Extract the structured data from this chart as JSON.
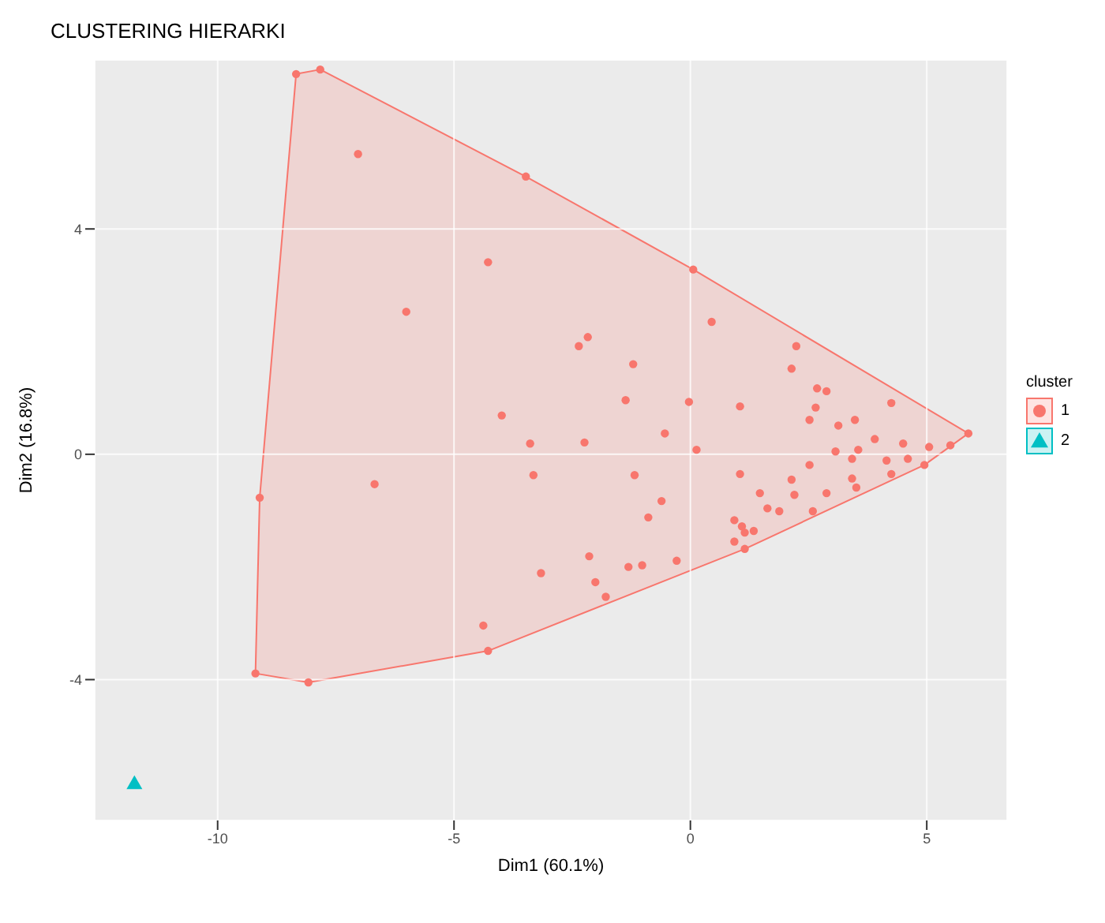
{
  "chart_data": {
    "type": "scatter",
    "title": "CLUSTERING HIERARKI",
    "xlabel": "Dim1 (60.1%)",
    "ylabel": "Dim2 (16.8%)",
    "legend_title": "cluster",
    "xlim": [
      -12.6,
      6.7
    ],
    "ylim": [
      -6.5,
      7.0
    ],
    "xticks": [
      -10,
      -5,
      0,
      5
    ],
    "yticks": [
      -4,
      0,
      4
    ],
    "grid": true,
    "legend": "right",
    "series": [
      {
        "name": "1",
        "color": "#f8766d",
        "marker": "circle",
        "x": [
          -8.34,
          -7.83,
          -7.03,
          -3.48,
          -4.28,
          -6.01,
          -2.36,
          -2.17,
          -1.21,
          -1.37,
          -3.99,
          0.06,
          0.45,
          2.24,
          2.14,
          -0.03,
          1.05,
          2.68,
          2.88,
          2.65,
          4.25,
          2.52,
          3.48,
          3.13,
          -0.54,
          -3.39,
          -2.24,
          0.13,
          3.9,
          4.5,
          5.05,
          5.5,
          5.88,
          3.07,
          3.55,
          3.42,
          4.15,
          4.6,
          4.95,
          2.52,
          4.25,
          1.05,
          -1.18,
          -3.32,
          2.14,
          3.42,
          3.51,
          1.47,
          2.2,
          2.88,
          -0.61,
          1.63,
          1.88,
          2.59,
          -0.89,
          0.93,
          1.09,
          1.15,
          1.34,
          0.93,
          1.15,
          -2.14,
          -0.29,
          -1.31,
          -1.02,
          -3.16,
          -2.01,
          -1.79,
          -9.11,
          -6.68,
          -4.38,
          -4.28,
          -9.2,
          -8.08
        ],
        "values": [
          6.75,
          6.83,
          5.33,
          4.93,
          3.41,
          2.53,
          1.92,
          2.08,
          1.6,
          0.96,
          0.69,
          3.28,
          2.35,
          1.92,
          1.52,
          0.93,
          0.85,
          1.17,
          1.12,
          0.83,
          0.91,
          0.61,
          0.61,
          0.51,
          0.37,
          0.19,
          0.21,
          0.08,
          0.27,
          0.19,
          0.13,
          0.16,
          0.37,
          0.05,
          0.08,
          -0.08,
          -0.11,
          -0.08,
          -0.19,
          -0.19,
          -0.35,
          -0.35,
          -0.37,
          -0.37,
          -0.45,
          -0.43,
          -0.59,
          -0.69,
          -0.72,
          -0.69,
          -0.83,
          -0.96,
          -1.01,
          -1.01,
          -1.12,
          -1.17,
          -1.28,
          -1.39,
          -1.36,
          -1.55,
          -1.68,
          -1.81,
          -1.89,
          -2.0,
          -1.97,
          -2.11,
          -2.27,
          -2.53,
          -0.77,
          -0.53,
          -3.04,
          -3.49,
          -3.89,
          -4.05
        ]
      },
      {
        "name": "2",
        "color": "#00bfc4",
        "marker": "triangle",
        "x": [
          -11.76
        ],
        "values": [
          -5.84
        ]
      },
      {
        "type": "area",
        "color": "#f8766d",
        "x": [
          -8.34,
          -7.83,
          -3.48,
          0.06,
          5.88,
          4.95,
          1.15,
          -4.28,
          -8.08,
          -9.2,
          -9.11,
          -8.34
        ],
        "values": [
          6.75,
          6.83,
          4.93,
          3.28,
          0.37,
          -0.19,
          -1.68,
          -3.49,
          -4.05,
          -3.89,
          -0.77,
          6.75
        ]
      }
    ]
  }
}
